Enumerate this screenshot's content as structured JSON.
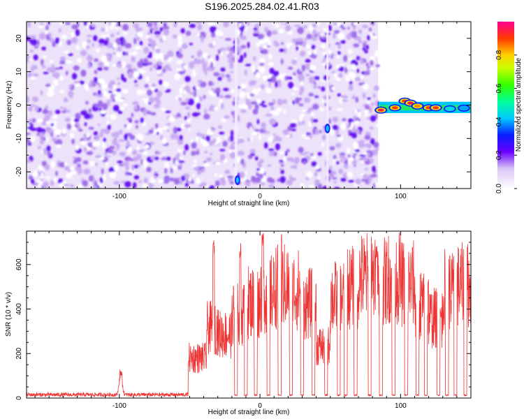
{
  "figure": {
    "title": "S196.2025.284.02.41.R03"
  },
  "chart_data": [
    {
      "type": "heatmap",
      "xlabel": "Height of straight line (km)",
      "ylabel": "Frequency (Hz)",
      "xlim": [
        -166,
        150
      ],
      "ylim": [
        -25,
        25
      ],
      "xticks": [
        -100,
        0,
        100
      ],
      "yticks": [
        -20,
        -10,
        0,
        10,
        20
      ],
      "colorbar": {
        "label": "Normalized spectral amplitude",
        "range": [
          0,
          1
        ],
        "ticks": [
          "0.0",
          "0.2",
          "0.4",
          "0.6",
          "0.8"
        ]
      },
      "description_bands": [
        {
          "x_range": [
            -166,
            84
          ],
          "content": "noise (light purple/violet speckle)"
        },
        {
          "x_range": [
            84,
            150
          ],
          "content": "signal near 0 Hz"
        }
      ],
      "signal_track": [
        {
          "x": 86,
          "freq": -1.5,
          "amp": 0.95
        },
        {
          "x": 96,
          "freq": -0.8,
          "amp": 0.9
        },
        {
          "x": 103,
          "freq": 1.2,
          "amp": 0.9
        },
        {
          "x": 107,
          "freq": 0.6,
          "amp": 0.95
        },
        {
          "x": 112,
          "freq": -0.3,
          "amp": 0.85
        },
        {
          "x": 120,
          "freq": -0.8,
          "amp": 0.9
        },
        {
          "x": 125,
          "freq": -0.8,
          "amp": 0.92
        },
        {
          "x": 135,
          "freq": -1.1,
          "amp": 0.45
        },
        {
          "x": 145,
          "freq": -0.9,
          "amp": 0.4
        }
      ],
      "streaks": [
        {
          "x": -17,
          "freq_range": [
            -25,
            25
          ]
        },
        {
          "x": 48,
          "freq_range": [
            -25,
            25
          ]
        }
      ],
      "hotspots": [
        {
          "x": -16,
          "freq": -22.5,
          "amp": 0.3
        },
        {
          "x": 48,
          "freq": -7,
          "amp": 0.25
        }
      ]
    },
    {
      "type": "line",
      "xlabel": "Height of straight line (km)",
      "ylabel": "SNR (10 * v/v)",
      "xlim": [
        -166,
        150
      ],
      "ylim": [
        0,
        750
      ],
      "xticks": [
        -100,
        0,
        100
      ],
      "yticks": [
        0,
        200,
        400,
        600
      ],
      "series_color": "#ee3333",
      "baseline_level": 15,
      "bump": {
        "x": -99,
        "peak": 140
      },
      "segments": [
        {
          "x": [
            -166,
            -51
          ],
          "level": 15
        },
        {
          "x": [
            -51,
            -38
          ],
          "level": 200
        },
        {
          "x": [
            -38,
            -30
          ],
          "level": 350
        },
        {
          "x": [
            -30,
            -20
          ],
          "level": 320
        },
        {
          "x": [
            -20,
            -10
          ],
          "level": 420
        },
        {
          "x": [
            -10,
            0
          ],
          "level": 480
        },
        {
          "x": [
            0,
            10
          ],
          "level": 520
        },
        {
          "x": [
            10,
            20
          ],
          "level": 560
        },
        {
          "x": [
            20,
            30
          ],
          "level": 540
        },
        {
          "x": [
            30,
            40
          ],
          "level": 470
        },
        {
          "x": [
            40,
            50
          ],
          "level": 260
        },
        {
          "x": [
            50,
            60
          ],
          "level": 500
        },
        {
          "x": [
            60,
            70
          ],
          "level": 550
        },
        {
          "x": [
            70,
            80
          ],
          "level": 600
        },
        {
          "x": [
            80,
            90
          ],
          "level": 580
        },
        {
          "x": [
            90,
            100
          ],
          "level": 600
        },
        {
          "x": [
            100,
            110
          ],
          "level": 570
        },
        {
          "x": [
            110,
            120
          ],
          "level": 470
        },
        {
          "x": [
            120,
            130
          ],
          "level": 400
        },
        {
          "x": [
            130,
            140
          ],
          "level": 540
        },
        {
          "x": [
            140,
            150
          ],
          "level": 560
        }
      ],
      "dropouts": [
        -17,
        -10,
        -3,
        6,
        14,
        22,
        30,
        38,
        47,
        56,
        61,
        68,
        78,
        86,
        95,
        104,
        112,
        118,
        127,
        133,
        139,
        146
      ],
      "peaks": [
        {
          "x": -33,
          "y": 710
        },
        {
          "x": -14,
          "y": 700
        },
        {
          "x": 2,
          "y": 750
        },
        {
          "x": 15,
          "y": 745
        },
        {
          "x": 83,
          "y": 690
        }
      ]
    }
  ]
}
